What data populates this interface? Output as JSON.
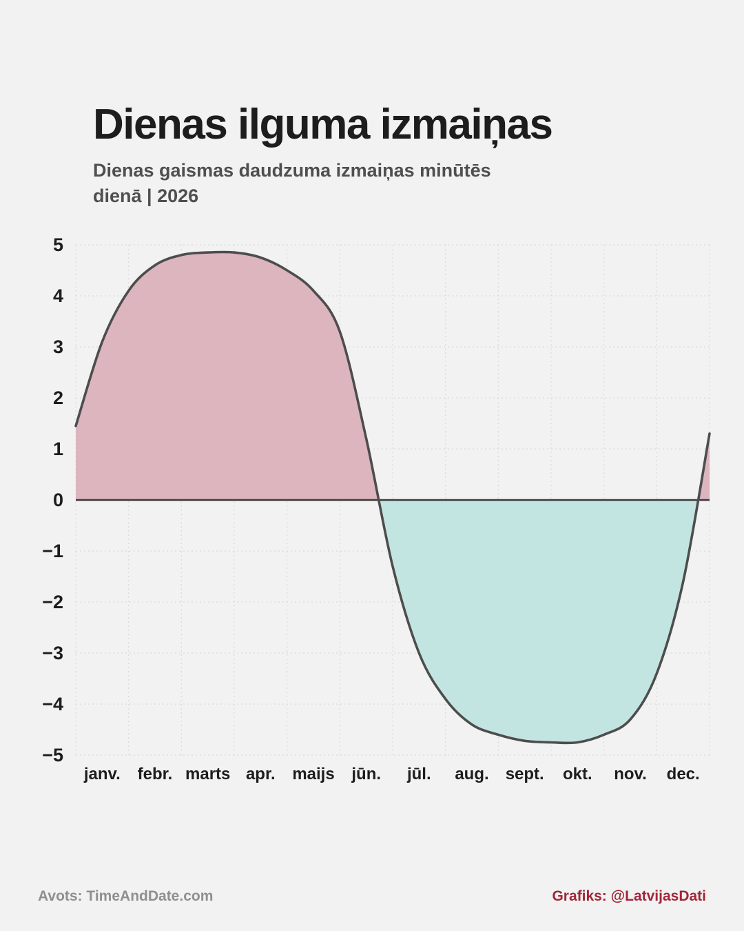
{
  "page": {
    "title": "Dienas ilguma izmaiņas",
    "subtitle": "Dienas gaismas daudzuma izmaiņas minūtēs dienā | 2026",
    "footer_left": "Avots: TimeAndDate.com",
    "footer_right": "Grafiks: @LatvijasDati",
    "background_color": "#f2f2f2",
    "credit_color": "#a12638"
  },
  "chart_data": {
    "type": "area",
    "title": "Dienas ilguma izmaiņas",
    "subtitle": "Dienas gaismas daudzuma izmaiņas minūtēs dienā | 2026",
    "xlabel": "",
    "ylabel": "",
    "x_unit": "month fraction (0 = Jan 1, 12 = Dec 31)",
    "months": [
      "janv.",
      "febr.",
      "marts",
      "apr.",
      "maijs",
      "jūn.",
      "jūl.",
      "aug.",
      "sept.",
      "okt.",
      "nov.",
      "dec."
    ],
    "x": [
      0.0,
      0.5,
      1.0,
      1.5,
      2.0,
      2.5,
      3.0,
      3.5,
      4.0,
      4.5,
      5.0,
      5.5,
      6.0,
      6.5,
      7.0,
      7.5,
      8.0,
      8.5,
      9.0,
      9.5,
      10.0,
      10.5,
      11.0,
      11.5,
      12.0
    ],
    "values": [
      1.45,
      3.1,
      4.1,
      4.6,
      4.8,
      4.85,
      4.85,
      4.75,
      4.5,
      4.1,
      3.3,
      1.2,
      -1.3,
      -3.0,
      -3.9,
      -4.4,
      -4.6,
      -4.72,
      -4.75,
      -4.75,
      -4.6,
      -4.3,
      -3.4,
      -1.6,
      1.3
    ],
    "ylim": [
      -5,
      5
    ],
    "yticks": [
      5,
      4,
      3,
      2,
      1,
      0,
      -1,
      -2,
      -3,
      -4,
      -5
    ],
    "grid": true,
    "legend": "none",
    "colors": {
      "positive_fill": "#dcb5bf",
      "negative_fill": "#c3e5e1",
      "line": "#4d4d4d",
      "zero_line": "#3a3a3a",
      "grid": "#dadada",
      "tick_text": "#1d1d1d"
    }
  }
}
